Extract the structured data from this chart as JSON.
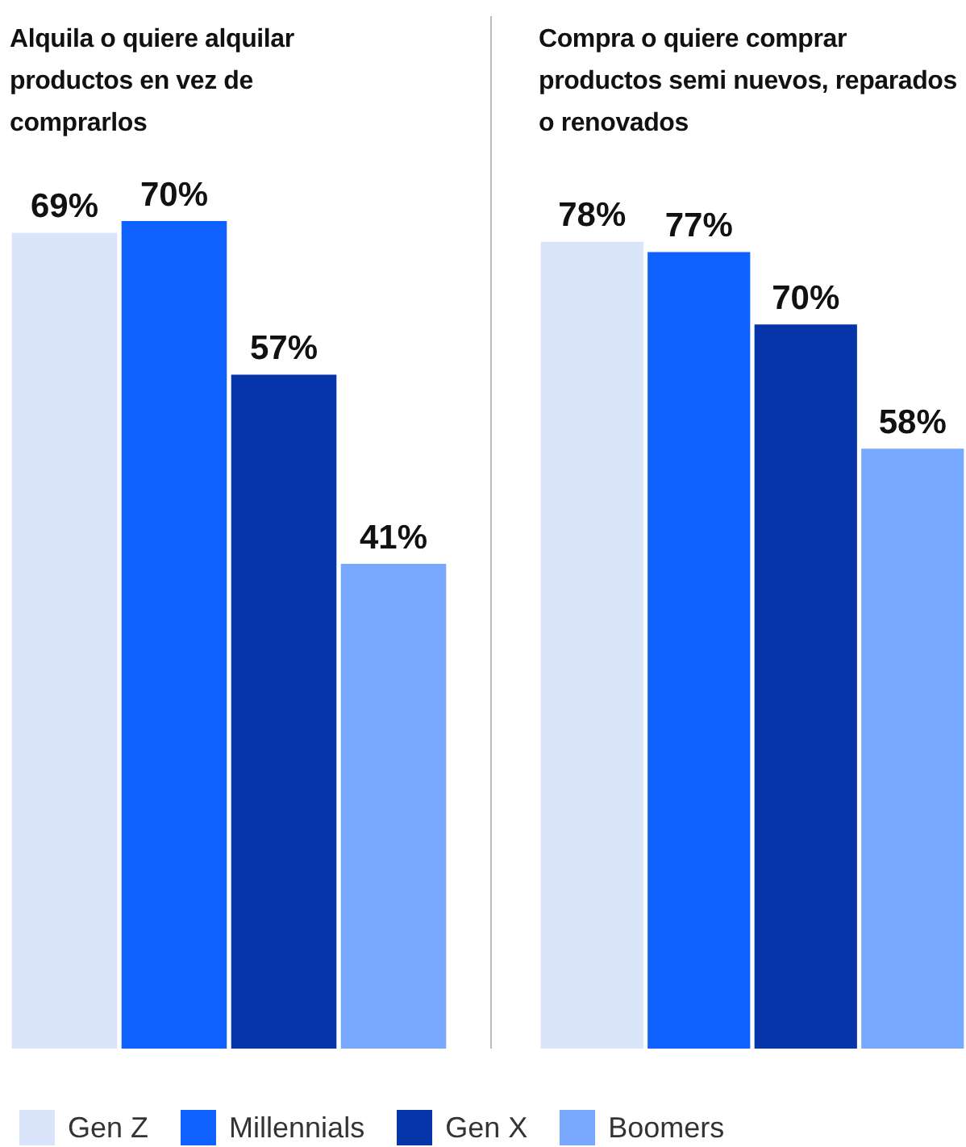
{
  "chart_data": [
    {
      "type": "bar",
      "title": "Alquila o quiere alquilar productos en vez de comprarlos",
      "categories": [
        null
      ],
      "legend": "bottom",
      "tick_labels": false,
      "series": [
        {
          "name": "Gen Z",
          "color": "#d9e4fb",
          "values": [
            69
          ],
          "value_labels": [
            "69%"
          ]
        },
        {
          "name": "Millennials",
          "color": "#0f62fe",
          "values": [
            70
          ],
          "value_labels": [
            "70%"
          ]
        },
        {
          "name": "Gen X",
          "color": "#0535a8",
          "values": [
            57
          ],
          "value_labels": [
            "57%"
          ]
        },
        {
          "name": "Boomers",
          "color": "#78a9ff",
          "values": [
            41
          ],
          "value_labels": [
            "41%"
          ]
        }
      ]
    },
    {
      "type": "bar",
      "title": "Compra o quiere comprar productos semi nuevos, reparados o renovados",
      "categories": [
        null
      ],
      "tick_labels": false,
      "series": [
        {
          "color": "#d9e4fb",
          "values": [
            78
          ],
          "value_labels": [
            "78%"
          ]
        },
        {
          "color": "#0f62fe",
          "values": [
            77
          ],
          "value_labels": [
            "77%"
          ]
        },
        {
          "color": "#0535a8",
          "values": [
            70
          ],
          "value_labels": [
            "70%"
          ]
        },
        {
          "color": "#78a9ff",
          "values": [
            58
          ],
          "value_labels": [
            "58%"
          ]
        }
      ]
    }
  ]
}
